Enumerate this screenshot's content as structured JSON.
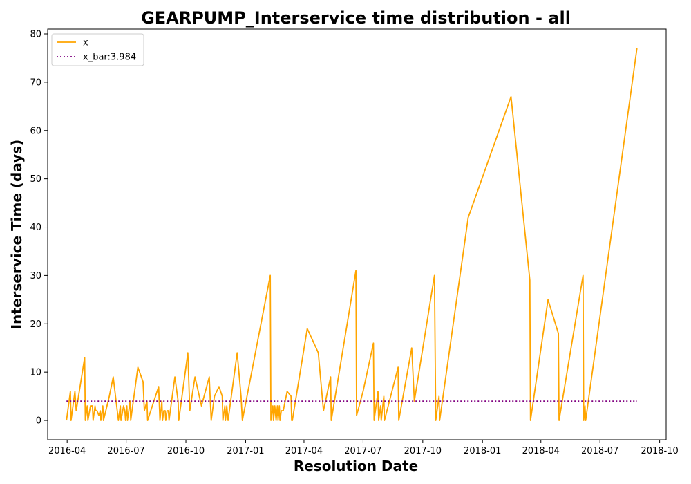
{
  "chart_data": {
    "type": "line",
    "title": "GEARPUMP_Interservice time distribution - all",
    "xlabel": "Resolution Date",
    "ylabel": "Interservice Time (days)",
    "xlim": [
      "2016-03-02",
      "2018-10-11"
    ],
    "ylim": [
      -4,
      81
    ],
    "x_ticks": [
      "2016-04",
      "2016-07",
      "2016-10",
      "2017-01",
      "2017-04",
      "2017-07",
      "2017-10",
      "2018-01",
      "2018-04",
      "2018-07",
      "2018-10"
    ],
    "y_ticks": [
      0,
      10,
      20,
      30,
      40,
      50,
      60,
      70,
      80
    ],
    "grid": false,
    "legend_position": "top-left",
    "series": [
      {
        "name": "x",
        "color": "#ffa500",
        "style": "solid",
        "points": [
          [
            "2016-03-31",
            0
          ],
          [
            "2016-04-06",
            6
          ],
          [
            "2016-04-07",
            0
          ],
          [
            "2016-04-13",
            6
          ],
          [
            "2016-04-15",
            2
          ],
          [
            "2016-04-28",
            13
          ],
          [
            "2016-04-29",
            0
          ],
          [
            "2016-05-02",
            3
          ],
          [
            "2016-05-03",
            0
          ],
          [
            "2016-05-07",
            3
          ],
          [
            "2016-05-10",
            3
          ],
          [
            "2016-05-11",
            0
          ],
          [
            "2016-05-14",
            3
          ],
          [
            "2016-05-15",
            2
          ],
          [
            "2016-05-17",
            2
          ],
          [
            "2016-05-20",
            1
          ],
          [
            "2016-05-22",
            2
          ],
          [
            "2016-05-23",
            0
          ],
          [
            "2016-05-26",
            3
          ],
          [
            "2016-05-27",
            0
          ],
          [
            "2016-06-05",
            5
          ],
          [
            "2016-06-11",
            9
          ],
          [
            "2016-06-19",
            0
          ],
          [
            "2016-06-22",
            3
          ],
          [
            "2016-06-23",
            0
          ],
          [
            "2016-06-27",
            3
          ],
          [
            "2016-06-29",
            2
          ],
          [
            "2016-06-30",
            0
          ],
          [
            "2016-07-02",
            3
          ],
          [
            "2016-07-03",
            0
          ],
          [
            "2016-07-07",
            4
          ],
          [
            "2016-07-08",
            0
          ],
          [
            "2016-07-19",
            11
          ],
          [
            "2016-07-27",
            8
          ],
          [
            "2016-07-29",
            2
          ],
          [
            "2016-08-02",
            4
          ],
          [
            "2016-08-03",
            0
          ],
          [
            "2016-08-20",
            7
          ],
          [
            "2016-08-22",
            0
          ],
          [
            "2016-08-25",
            4
          ],
          [
            "2016-08-26",
            0
          ],
          [
            "2016-08-28",
            2
          ],
          [
            "2016-08-30",
            2
          ],
          [
            "2016-08-31",
            0
          ],
          [
            "2016-09-02",
            2
          ],
          [
            "2016-09-04",
            2
          ],
          [
            "2016-09-05",
            0
          ],
          [
            "2016-09-14",
            9
          ],
          [
            "2016-09-19",
            4
          ],
          [
            "2016-09-20",
            0
          ],
          [
            "2016-10-04",
            14
          ],
          [
            "2016-10-07",
            2
          ],
          [
            "2016-10-15",
            9
          ],
          [
            "2016-10-25",
            3
          ],
          [
            "2016-11-06",
            9
          ],
          [
            "2016-11-09",
            0
          ],
          [
            "2016-11-14",
            5
          ],
          [
            "2016-11-21",
            7
          ],
          [
            "2016-11-26",
            5
          ],
          [
            "2016-11-27",
            0
          ],
          [
            "2016-11-30",
            3
          ],
          [
            "2016-12-01",
            0
          ],
          [
            "2016-12-03",
            3
          ],
          [
            "2016-12-05",
            0
          ],
          [
            "2016-12-19",
            14
          ],
          [
            "2016-12-25",
            5
          ],
          [
            "2016-12-27",
            0
          ],
          [
            "2017-02-08",
            30
          ],
          [
            "2017-02-09",
            0
          ],
          [
            "2017-02-12",
            3
          ],
          [
            "2017-02-13",
            0
          ],
          [
            "2017-02-15",
            3
          ],
          [
            "2017-02-17",
            0
          ],
          [
            "2017-02-19",
            3
          ],
          [
            "2017-02-20",
            0
          ],
          [
            "2017-02-22",
            3
          ],
          [
            "2017-02-23",
            0
          ],
          [
            "2017-02-25",
            2
          ],
          [
            "2017-02-28",
            2
          ],
          [
            "2017-03-06",
            6
          ],
          [
            "2017-03-12",
            5
          ],
          [
            "2017-03-13",
            0
          ],
          [
            "2017-03-14",
            0
          ],
          [
            "2017-04-06",
            19
          ],
          [
            "2017-04-23",
            14
          ],
          [
            "2017-05-01",
            2
          ],
          [
            "2017-05-12",
            9
          ],
          [
            "2017-05-13",
            0
          ],
          [
            "2017-06-20",
            31
          ],
          [
            "2017-06-21",
            1
          ],
          [
            "2017-07-01",
            6
          ],
          [
            "2017-07-17",
            16
          ],
          [
            "2017-07-18",
            0
          ],
          [
            "2017-07-24",
            6
          ],
          [
            "2017-07-25",
            0
          ],
          [
            "2017-07-28",
            3
          ],
          [
            "2017-07-29",
            0
          ],
          [
            "2017-08-02",
            5
          ],
          [
            "2017-08-03",
            0
          ],
          [
            "2017-08-24",
            11
          ],
          [
            "2017-08-25",
            0
          ],
          [
            "2017-09-14",
            15
          ],
          [
            "2017-09-18",
            4
          ],
          [
            "2017-10-19",
            30
          ],
          [
            "2017-10-21",
            0
          ],
          [
            "2017-10-26",
            5
          ],
          [
            "2017-10-27",
            0
          ],
          [
            "2017-12-10",
            42
          ],
          [
            "2018-02-14",
            67
          ],
          [
            "2018-03-15",
            29
          ],
          [
            "2018-03-16",
            0
          ],
          [
            "2018-04-12",
            25
          ],
          [
            "2018-04-28",
            18
          ],
          [
            "2018-04-29",
            0
          ],
          [
            "2018-06-05",
            30
          ],
          [
            "2018-06-06",
            0
          ],
          [
            "2018-06-08",
            3
          ],
          [
            "2018-06-09",
            0
          ],
          [
            "2018-08-27",
            77
          ]
        ]
      },
      {
        "name": "x_bar:3.984",
        "color": "#800080",
        "style": "dotted",
        "points": [
          [
            "2016-03-31",
            3.984
          ],
          [
            "2018-08-27",
            3.984
          ]
        ]
      }
    ]
  }
}
